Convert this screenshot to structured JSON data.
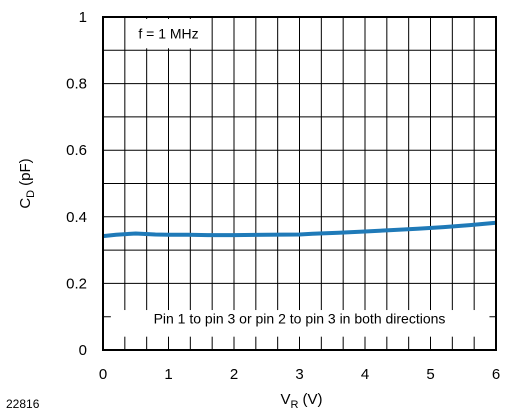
{
  "chart_data": {
    "type": "line",
    "xlabel": {
      "main": "V",
      "sub": "R",
      "unit": "(V)"
    },
    "ylabel": {
      "main": "C",
      "sub": "D",
      "unit": "(pF)"
    },
    "xlim": [
      0,
      6
    ],
    "ylim": [
      0,
      1
    ],
    "x_ticks": [
      "0",
      "1",
      "2",
      "3",
      "4",
      "5",
      "6"
    ],
    "y_ticks": [
      "0",
      "0.2",
      "0.4",
      "0.6",
      "0.8",
      "1"
    ],
    "grid": true,
    "series": [
      {
        "color": "#1f7ab8",
        "x": [
          0,
          0.2,
          0.5,
          0.8,
          1.0,
          1.3,
          1.6,
          2.0,
          2.5,
          3.0,
          3.2,
          3.6,
          4.0,
          4.4,
          4.8,
          5.2,
          5.6,
          6.0
        ],
        "y": [
          0.342,
          0.346,
          0.35,
          0.347,
          0.346,
          0.346,
          0.345,
          0.345,
          0.346,
          0.347,
          0.349,
          0.352,
          0.356,
          0.36,
          0.364,
          0.369,
          0.375,
          0.382
        ]
      }
    ],
    "annotations": {
      "frequency": "f = 1 MHz",
      "condition": "Pin 1 to pin 3 or pin 2 to pin 3 in both directions"
    }
  },
  "figure_id": "22816"
}
